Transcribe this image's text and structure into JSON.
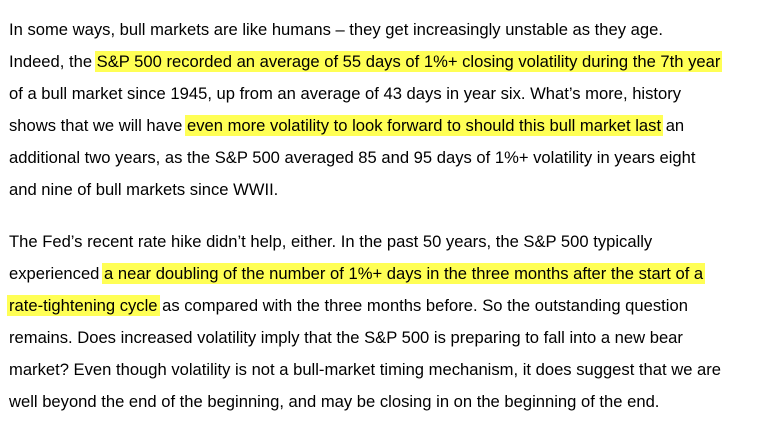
{
  "document": {
    "highlight_color": "#ffff55",
    "paragraphs": [
      {
        "lines": [
          [
            {
              "text": "In some ways, bull markets are like humans – they get increasingly unstable as they age.",
              "hl": false
            }
          ],
          [
            {
              "text": "Indeed, the ",
              "hl": false
            },
            {
              "text": "S&P 500 recorded an average of 55 days of 1%+ closing volatility during the 7th year",
              "hl": true
            }
          ],
          [
            {
              "text": "of a bull market since 1945, up from an average of 43 days in year six. What’s more, history",
              "hl": false
            }
          ],
          [
            {
              "text": "shows that we will have ",
              "hl": false
            },
            {
              "text": "even more volatility to look forward to should this bull market last",
              "hl": true
            },
            {
              "text": " an",
              "hl": false
            }
          ],
          [
            {
              "text": "additional two years, as the S&P 500 averaged 85 and 95 days of 1%+ volatility in years eight",
              "hl": false
            }
          ],
          [
            {
              "text": "and nine of bull markets since WWII.",
              "hl": false
            }
          ]
        ]
      },
      {
        "lines": [
          [
            {
              "text": "The Fed’s recent rate hike didn’t help, either. In the past 50 years, the S&P 500 typically",
              "hl": false
            }
          ],
          [
            {
              "text": "experienced ",
              "hl": false
            },
            {
              "text": "a near doubling of the number of 1%+ days in the three months after the start of a",
              "hl": true
            }
          ],
          [
            {
              "text": "rate-tightening cycle",
              "hl": true
            },
            {
              "text": " as compared with the three months before. So the outstanding question",
              "hl": false
            }
          ],
          [
            {
              "text": "remains. Does increased volatility imply that the S&P 500 is preparing to fall into a new bear",
              "hl": false
            }
          ],
          [
            {
              "text": "market? Even though volatility is not a bull-market timing mechanism, it does suggest that we are",
              "hl": false
            }
          ],
          [
            {
              "text": "well beyond the end of the beginning, and may be closing in on the beginning of the end.",
              "hl": false
            }
          ]
        ]
      }
    ]
  }
}
